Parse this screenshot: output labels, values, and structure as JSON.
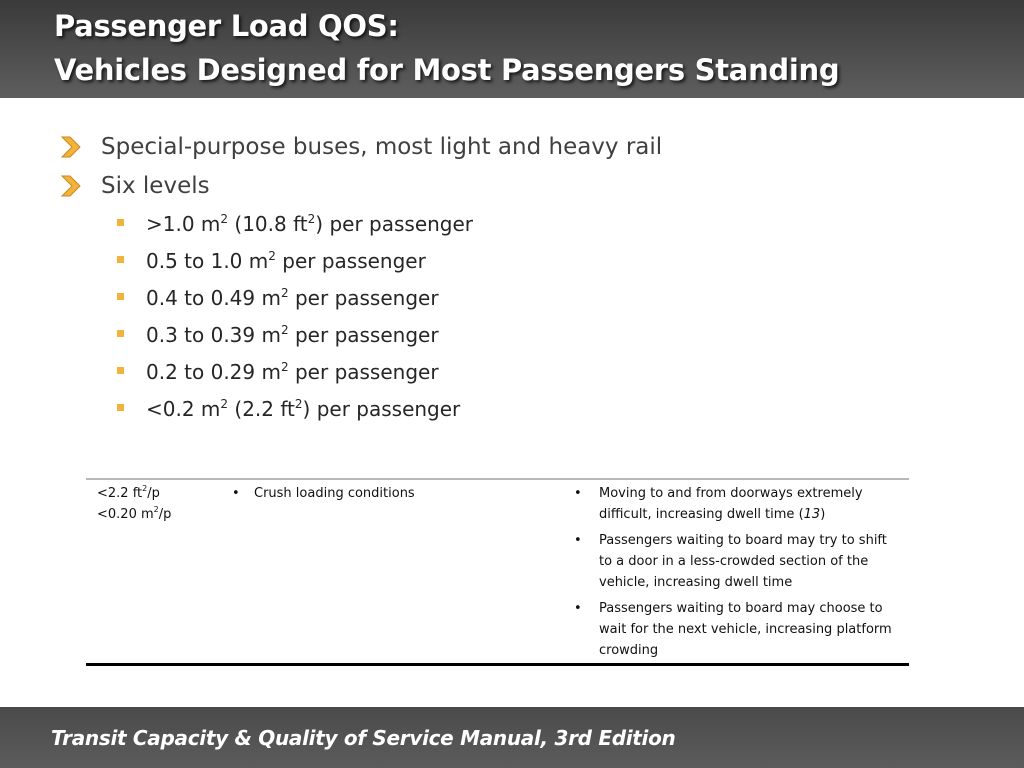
{
  "header": {
    "title_line1": "Passenger Load QOS:",
    "title_line2": "Vehicles Designed for Most Passengers Standing"
  },
  "bullets": {
    "item1": "Special-purpose buses, most light and heavy rail",
    "item2": "Six levels",
    "sub": [
      {
        "a": ">1.0 m",
        "b": "2",
        "c": " (10.8 ft",
        "d": "2",
        "e": ") per passenger"
      },
      {
        "a": "0.5 to 1.0 m",
        "b": "2",
        "c": " per passenger"
      },
      {
        "a": "0.4 to 0.49 m",
        "b": "2",
        "c": " per passenger"
      },
      {
        "a": "0.3 to 0.39 m",
        "b": "2",
        "c": " per passenger"
      },
      {
        "a": "0.2 to 0.29 m",
        "b": "2",
        "c": " per passenger"
      },
      {
        "a": "<0.2 m",
        "b": "2",
        "c": " (2.2 ft",
        "d": "2",
        "e": ") per passenger"
      }
    ]
  },
  "table": {
    "col1_line1_a": "<2.2 ft",
    "col1_line1_sup": "2",
    "col1_line1_b": "/p",
    "col1_line2_a": "<0.20 m",
    "col1_line2_sup": "2",
    "col1_line2_b": "/p",
    "bullet": "•",
    "col2": "Crush loading conditions",
    "col3_item1_a": "Moving to and from doorways extremely difficult, increasing dwell time (",
    "col3_item1_ref": "13",
    "col3_item1_b": ")",
    "col3_item2": "Passengers waiting to board may try to shift to a door in a less-crowded section of the vehicle, increasing dwell time",
    "col3_item3": "Passengers waiting to board may choose to wait for the next vehicle, increasing platform crowding"
  },
  "footer": {
    "text": "Transit Capacity & Quality of Service Manual, 3rd Edition"
  },
  "colors": {
    "accent_orange": "#f2b33d",
    "header_bg": "#4a4a4a"
  }
}
